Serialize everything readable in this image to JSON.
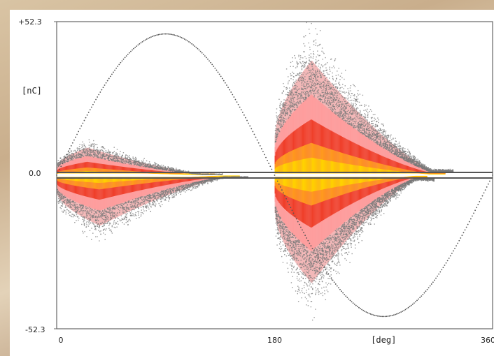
{
  "chart_data": {
    "type": "heatmap",
    "description_of_axes": "phase-resolved partial discharge pattern",
    "xlabel": "[deg]",
    "ylabel": "[nC]",
    "xlim": [
      0,
      360
    ],
    "ylim": [
      -52.3,
      52.3
    ],
    "x_ticks": [
      "0",
      "180",
      "[deg]",
      "360"
    ],
    "y_ticks": [
      "+52.3",
      "[nC]",
      "0.0",
      "-52.3"
    ],
    "reference_sine": {
      "amplitude": 52.3,
      "period_deg": 360,
      "phase_deg": 0
    },
    "clusters": [
      {
        "name": "positive-left",
        "x_range": [
          0,
          130
        ],
        "peak_x": 25,
        "max_abs": 12,
        "polarity": "positive"
      },
      {
        "name": "negative-left",
        "x_range": [
          0,
          150
        ],
        "peak_x": 35,
        "max_abs": 22,
        "polarity": "negative"
      },
      {
        "name": "positive-right",
        "x_range": [
          180,
          320
        ],
        "peak_x": 210,
        "max_abs": 50,
        "polarity": "positive"
      },
      {
        "name": "negative-right",
        "x_range": [
          180,
          305
        ],
        "peak_x": 210,
        "max_abs": 47,
        "polarity": "negative"
      }
    ],
    "density_colors": [
      "#ffd200",
      "#ff9a1e",
      "#ee3a24",
      "#ff9a9a",
      "#f2b6b6",
      "#7a7a7a"
    ],
    "grid": false
  }
}
